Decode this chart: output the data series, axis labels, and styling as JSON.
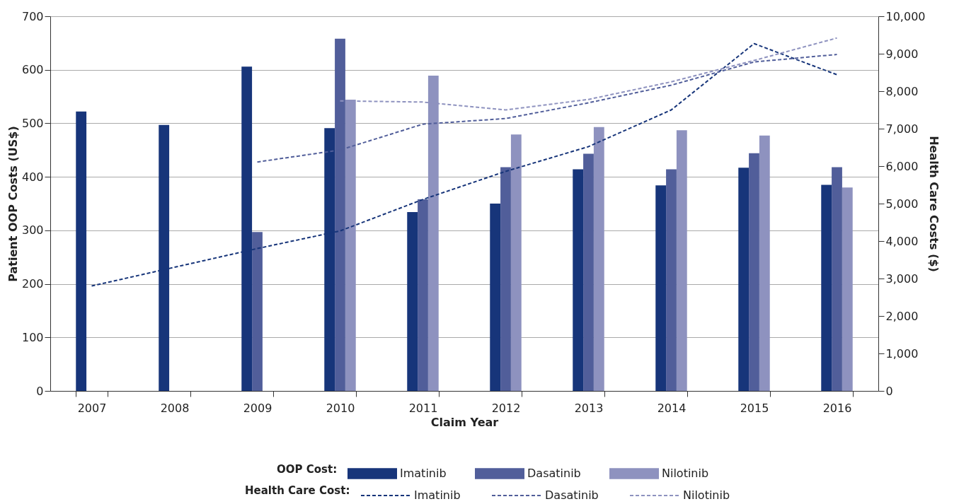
{
  "chart_data": {
    "type": "bar",
    "categories": [
      "2007",
      "2008",
      "2009",
      "2010",
      "2011",
      "2012",
      "2013",
      "2014",
      "2015",
      "2016"
    ],
    "xlabel": "Claim Year",
    "ylabel": "Patient OOP Costs (US$)",
    "y2label": "Health Care Costs ($)",
    "legend_title": [
      "OOP Cost:",
      "Health Care Cost:"
    ],
    "ylim": [
      0,
      700
    ],
    "yticks": [
      0,
      100,
      200,
      300,
      400,
      500,
      600,
      700
    ],
    "y2lim": [
      0,
      10000
    ],
    "y2ticks": [
      0,
      {
        "value": 1000,
        "label": "1,000"
      },
      {
        "value": 2000,
        "label": "2,000"
      },
      {
        "value": 3000,
        "label": "3,000"
      },
      {
        "value": 4000,
        "label": "4,000"
      },
      {
        "value": 5000,
        "label": "5,000"
      },
      {
        "value": 6000,
        "label": "6,000"
      },
      {
        "value": 7000,
        "label": "7,000"
      },
      {
        "value": 8000,
        "label": "8,000"
      },
      {
        "value": 9000,
        "label": "9,000"
      },
      {
        "value": 10000,
        "label": "10,000"
      }
    ],
    "grid": "y",
    "legend": "bottom",
    "line_style": "dashed",
    "series": [
      {
        "name": "Imatinib",
        "color": "#17357a",
        "values": [
          522,
          497,
          606,
          491,
          334,
          350,
          414,
          384,
          417,
          385
        ]
      },
      {
        "name": "Dasatinib",
        "color": "#515e9a",
        "values": [
          null,
          null,
          297,
          658,
          358,
          418,
          443,
          414,
          444,
          418
        ]
      },
      {
        "name": "Nilotinib",
        "color": "#8e92bf",
        "values": [
          null,
          null,
          null,
          544,
          589,
          479,
          493,
          487,
          477,
          380
        ]
      },
      {
        "name": "Imatinib",
        "type": "line",
        "axis": "y2",
        "color": "#17357a",
        "values": [
          2800,
          3300,
          3800,
          4270,
          5110,
          5860,
          6520,
          7500,
          9270,
          8440
        ]
      },
      {
        "name": "Dasatinib",
        "type": "line",
        "axis": "y2",
        "color": "#515e9a",
        "values": [
          null,
          null,
          6110,
          6430,
          7120,
          7270,
          7690,
          8160,
          8780,
          8980
        ]
      },
      {
        "name": "Nilotinib",
        "type": "line",
        "axis": "y2",
        "color": "#8e92bf",
        "values": [
          null,
          null,
          null,
          7740,
          7710,
          7500,
          7780,
          8250,
          8820,
          9420
        ]
      }
    ]
  }
}
